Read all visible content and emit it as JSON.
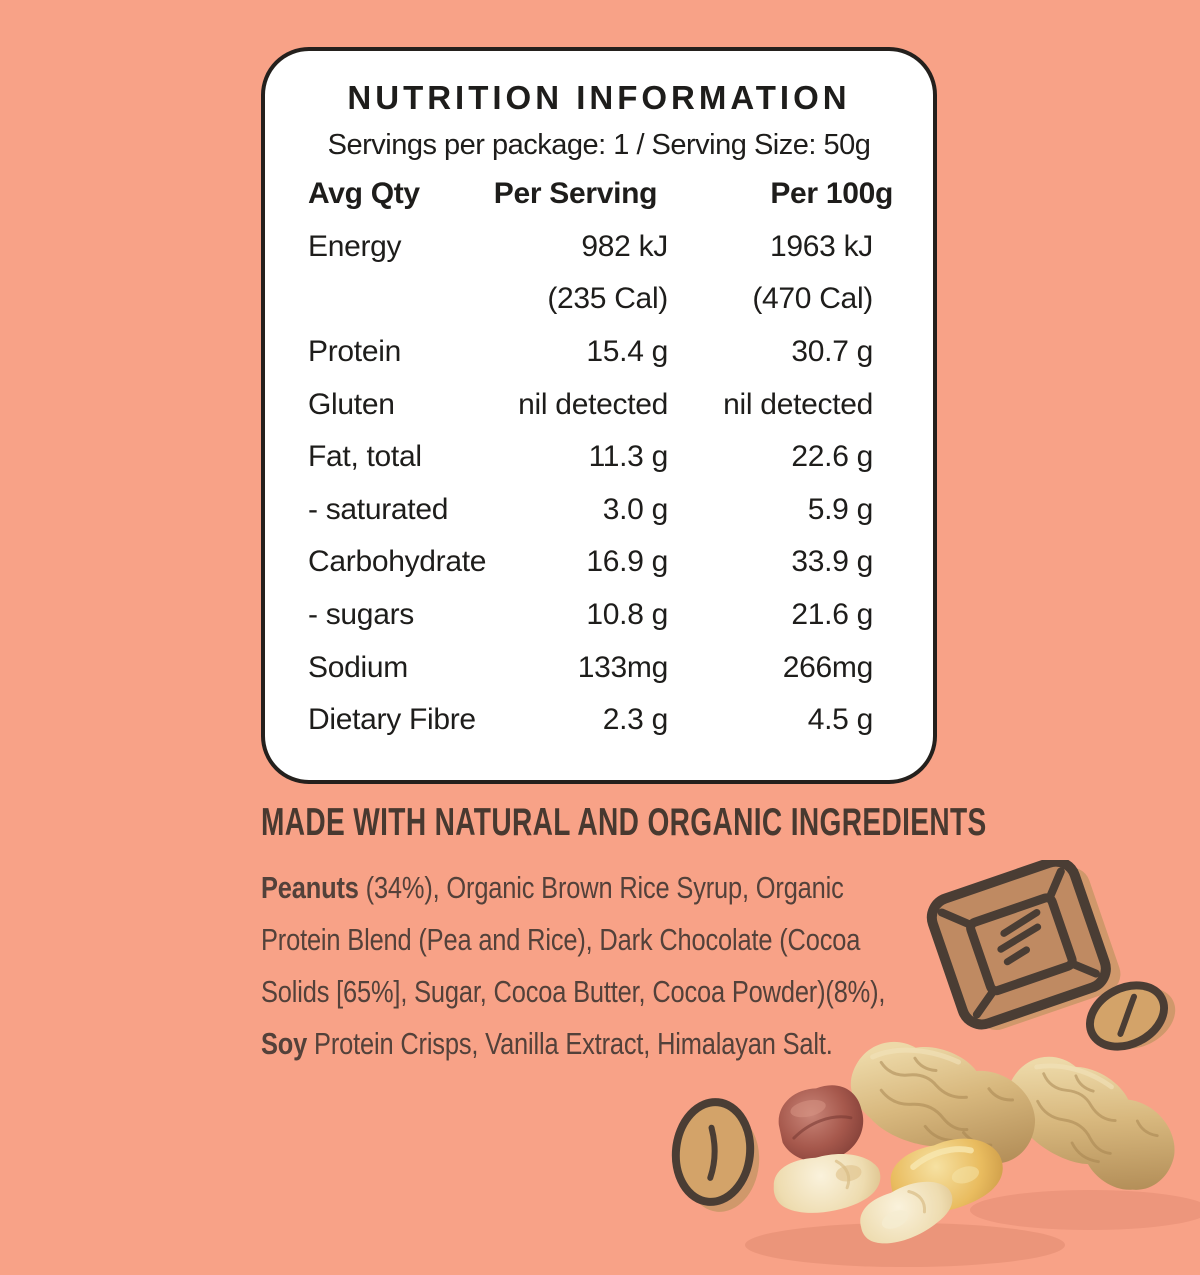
{
  "colors": {
    "background": "#F8A287",
    "panel_bg": "#FFFFFF",
    "panel_border": "#24201D",
    "table_text": "#1E1D1B",
    "heading_text": "#483930",
    "body_text": "#53413A",
    "illus_fill": "#BF8A62",
    "illus_outline": "#4A3D34",
    "illus_shadow": "#D0986B",
    "bean_fill": "#D3A369"
  },
  "panel": {
    "title": "NUTRITION INFORMATION",
    "servings_line": "Servings per package: 1 / Serving Size: 50g"
  },
  "table": {
    "headers": [
      "Avg Qty",
      "Per Serving",
      "Per 100g"
    ],
    "rows": [
      {
        "label": "Energy",
        "per_serving": "982 kJ",
        "per_100g": "1963 kJ"
      },
      {
        "label": "",
        "per_serving": "(235 Cal)",
        "per_100g": "(470 Cal)"
      },
      {
        "label": "Protein",
        "per_serving": "15.4 g",
        "per_100g": "30.7 g"
      },
      {
        "label": "Gluten",
        "per_serving": "nil detected",
        "per_100g": "nil detected"
      },
      {
        "label": "Fat, total",
        "per_serving": "11.3 g",
        "per_100g": "22.6 g"
      },
      {
        "label": "- saturated",
        "per_serving": "3.0 g",
        "per_100g": "5.9 g"
      },
      {
        "label": "Carbohydrate",
        "per_serving": "16.9 g",
        "per_100g": "33.9 g"
      },
      {
        "label": "- sugars",
        "per_serving": "10.8 g",
        "per_100g": "21.6 g"
      },
      {
        "label": "Sodium",
        "per_serving": "133mg",
        "per_100g": "266mg"
      },
      {
        "label": "Dietary Fibre",
        "per_serving": "2.3 g",
        "per_100g": "4.5 g"
      }
    ]
  },
  "ingredients_heading": "MADE WITH NATURAL AND ORGANIC INGREDIENTS",
  "ingredients": {
    "text": "Peanuts (34%), Organic Brown Rice Syrup, Organic\nProtein Blend (Pea and Rice), Dark Chocolate (Cocoa\nSolids [65%], Sugar, Cocoa Butter, Cocoa Powder)(8%),\nSoy Protein Crisps, Vanilla Extract, Himalayan Salt.",
    "bold_words": [
      "Peanuts",
      "Soy"
    ]
  },
  "illustrations": {
    "chocolate": "chocolate-piece-illustration",
    "bean_right": "cocoa-bean-icon-right",
    "bean_left": "cocoa-bean-icon-left",
    "peanuts": "peanuts-photo"
  }
}
